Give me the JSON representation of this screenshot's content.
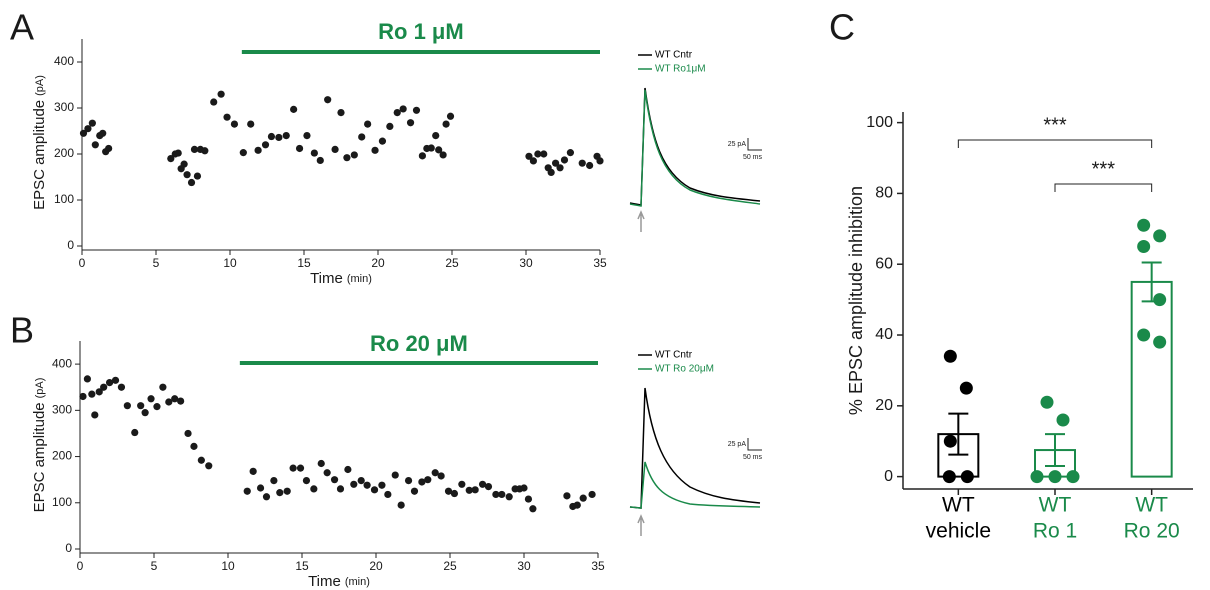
{
  "chart_data": [
    {
      "type": "scatter",
      "panel": "A",
      "y_label": "EPSC amplitude",
      "y_label_unit": "(pA)",
      "x_label": "Time",
      "x_label_unit": "(min)",
      "color": "#1a1a1a",
      "xlim": [
        0,
        35
      ],
      "xticks": [
        0,
        5,
        10,
        15,
        20,
        25,
        30,
        35
      ],
      "ylim": [
        0,
        450
      ],
      "yticks": [
        0,
        100,
        200,
        300,
        400
      ],
      "drug_bar": {
        "label": "Ro 1 μM",
        "x": [
          10.8,
          35
        ],
        "color": "#1a8a4a"
      },
      "trace_legend": [
        {
          "name": "WT Cntr",
          "color": "#000000"
        },
        {
          "name": "WT Ro1μM",
          "color": "#1a8a4a"
        }
      ],
      "scale_bar": [
        "25 pA",
        "50 ms"
      ],
      "x": [
        0.1,
        0.4,
        0.7,
        0.9,
        1.2,
        1.4,
        1.6,
        1.8,
        6.0,
        6.3,
        6.5,
        6.7,
        6.9,
        7.1,
        7.4,
        7.6,
        7.8,
        8.0,
        8.3,
        8.9,
        9.4,
        9.8,
        10.3,
        10.9,
        11.4,
        11.9,
        12.4,
        12.8,
        13.3,
        13.8,
        14.3,
        14.7,
        15.2,
        15.7,
        16.1,
        16.6,
        17.1,
        17.5,
        17.9,
        18.4,
        18.9,
        19.3,
        19.8,
        20.3,
        20.8,
        21.3,
        21.7,
        22.2,
        22.6,
        23.0,
        23.3,
        23.6,
        23.9,
        24.1,
        24.4,
        24.6,
        24.9,
        30.2,
        30.5,
        30.8,
        31.2,
        31.5,
        31.7,
        32.0,
        32.3,
        32.6,
        33.0,
        33.8,
        34.3,
        34.8,
        35.0
      ],
      "values": [
        245,
        255,
        267,
        220,
        240,
        245,
        205,
        212,
        190,
        200,
        202,
        168,
        178,
        155,
        138,
        210,
        152,
        210,
        207,
        313,
        330,
        280,
        265,
        203,
        265,
        208,
        220,
        238,
        236,
        240,
        297,
        212,
        240,
        202,
        186,
        318,
        210,
        290,
        192,
        198,
        237,
        265,
        208,
        228,
        260,
        290,
        298,
        268,
        295,
        196,
        212,
        213,
        240,
        209,
        198,
        265,
        282,
        195,
        185,
        200,
        200,
        170,
        160,
        180,
        170,
        187,
        203,
        180,
        175,
        195,
        185
      ]
    },
    {
      "type": "scatter",
      "panel": "B",
      "y_label": "EPSC amplitude",
      "y_label_unit": "(pA)",
      "x_label": "Time",
      "x_label_unit": "(min)",
      "color": "#1a1a1a",
      "xlim": [
        0,
        35
      ],
      "xticks": [
        0,
        5,
        10,
        15,
        20,
        25,
        30,
        35
      ],
      "ylim": [
        0,
        450
      ],
      "yticks": [
        0,
        100,
        200,
        300,
        400
      ],
      "drug_bar": {
        "label": "Ro 20 μM",
        "x": [
          10.8,
          35
        ],
        "color": "#1a8a4a"
      },
      "trace_legend": [
        {
          "name": "WT Cntr",
          "color": "#000000"
        },
        {
          "name": "WT Ro 20μM",
          "color": "#1a8a4a"
        }
      ],
      "scale_bar": [
        "25 pA",
        "50 ms"
      ],
      "x": [
        0.2,
        0.5,
        0.8,
        1.0,
        1.3,
        1.6,
        2.0,
        2.4,
        2.8,
        3.2,
        3.7,
        4.1,
        4.4,
        4.8,
        5.2,
        5.6,
        6.0,
        6.4,
        6.8,
        7.3,
        7.7,
        8.2,
        8.7,
        11.3,
        11.7,
        12.2,
        12.6,
        13.1,
        13.5,
        14.0,
        14.4,
        14.9,
        15.3,
        15.8,
        16.3,
        16.7,
        17.2,
        17.6,
        18.1,
        18.5,
        19.0,
        19.4,
        19.9,
        20.4,
        20.8,
        21.3,
        21.7,
        22.2,
        22.6,
        23.1,
        23.5,
        24.0,
        24.4,
        24.9,
        25.3,
        25.8,
        26.3,
        26.7,
        27.2,
        27.6,
        28.1,
        28.5,
        29.0,
        29.4,
        29.7,
        30.0,
        30.3,
        30.6,
        32.9,
        33.3,
        33.6,
        34.0,
        34.6
      ],
      "values": [
        330,
        368,
        335,
        290,
        340,
        350,
        360,
        365,
        350,
        310,
        252,
        310,
        295,
        325,
        308,
        350,
        318,
        325,
        320,
        250,
        222,
        192,
        180,
        125,
        168,
        132,
        113,
        148,
        122,
        125,
        175,
        175,
        148,
        130,
        185,
        165,
        150,
        130,
        172,
        140,
        148,
        138,
        128,
        138,
        118,
        160,
        95,
        148,
        125,
        145,
        150,
        165,
        158,
        125,
        120,
        140,
        127,
        128,
        140,
        135,
        118,
        118,
        113,
        130,
        130,
        132,
        108,
        87,
        115,
        92,
        95,
        110,
        118
      ]
    },
    {
      "type": "bar",
      "panel": "C",
      "y_label": "% EPSC amplitude inhibition",
      "categories": [
        [
          "WT",
          "vehicle"
        ],
        [
          "WT",
          "Ro 1"
        ],
        [
          "WT",
          "Ro 20"
        ]
      ],
      "colors": [
        "#000000",
        "#1a8a4a",
        "#1a8a4a"
      ],
      "values": [
        12,
        7.5,
        55
      ],
      "errors": [
        5.8,
        4.5,
        5.5
      ],
      "points": [
        [
          34,
          25,
          10,
          0,
          0
        ],
        [
          21,
          16,
          0,
          0,
          0
        ],
        [
          71,
          68,
          65,
          50,
          40,
          38
        ]
      ],
      "ylim": [
        -3.5,
        103
      ],
      "yticks": [
        0,
        20,
        40,
        60,
        80,
        100
      ],
      "significance": [
        {
          "label": "***",
          "between": [
            0,
            2
          ]
        },
        {
          "label": "***",
          "between": [
            1,
            2
          ]
        }
      ]
    }
  ]
}
